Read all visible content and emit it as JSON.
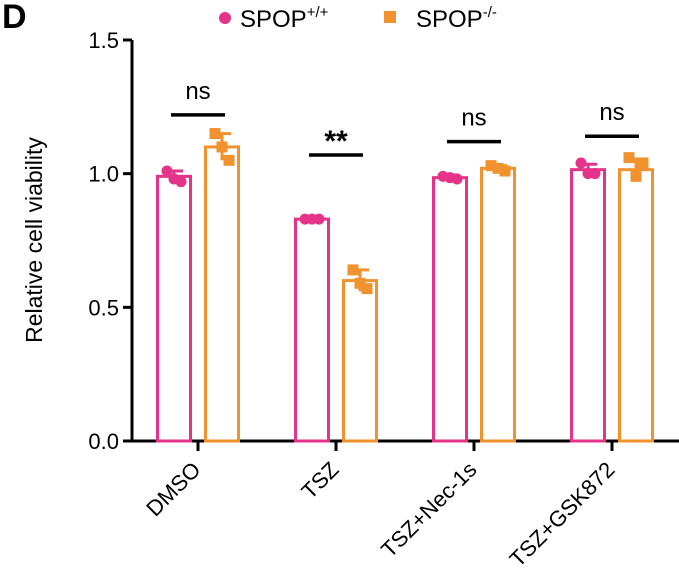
{
  "panel_label": "D",
  "chart_data": {
    "type": "bar",
    "ylabel": "Relative cell viability",
    "xlabel": "",
    "ylim": [
      0,
      1.5
    ],
    "yticks": [
      0.0,
      0.5,
      1.0,
      1.5
    ],
    "ytick_labels": [
      "0.0",
      "0.5",
      "1.0",
      "1.5"
    ],
    "categories": [
      "DMSO",
      "TSZ",
      "TSZ+Nec-1s",
      "TSZ+GSK872"
    ],
    "legend": {
      "placement": "top"
    },
    "series": [
      {
        "name": "SPOP+/+",
        "label_base": "SPOP",
        "label_sup": "+/+",
        "color": "#e6338a",
        "marker": "circle",
        "values": [
          0.99,
          0.83,
          0.985,
          1.015
        ],
        "errors": [
          0.02,
          0.005,
          0.01,
          0.02
        ],
        "points": [
          [
            1.01,
            0.98,
            0.97
          ],
          [
            0.83,
            0.83,
            0.83
          ],
          [
            0.99,
            0.985,
            0.98
          ],
          [
            1.04,
            1.0,
            1.0
          ]
        ]
      },
      {
        "name": "SPOP-/-",
        "label_base": "SPOP",
        "label_sup": "-/-",
        "color": "#f0922e",
        "marker": "square",
        "values": [
          1.1,
          0.6,
          1.02,
          1.015
        ],
        "errors": [
          0.05,
          0.04,
          0.01,
          0.04
        ],
        "points": [
          [
            1.15,
            1.1,
            1.05
          ],
          [
            0.64,
            0.59,
            0.57
          ],
          [
            1.03,
            1.02,
            1.01
          ],
          [
            1.06,
            0.99,
            1.04
          ]
        ]
      }
    ],
    "annotations": [
      {
        "category": 0,
        "text": "ns",
        "y": 1.22
      },
      {
        "category": 1,
        "text": "**",
        "y": 1.07
      },
      {
        "category": 2,
        "text": "ns",
        "y": 1.12
      },
      {
        "category": 3,
        "text": "ns",
        "y": 1.14
      }
    ],
    "grid": false
  }
}
